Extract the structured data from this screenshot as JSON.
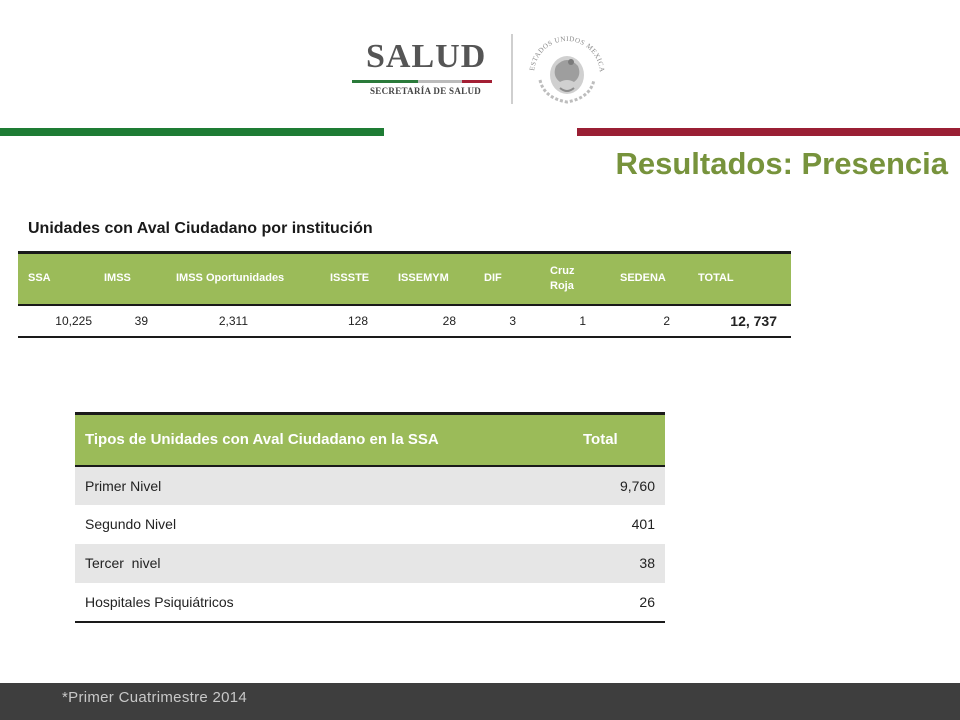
{
  "header": {
    "logo_word": "SALUD",
    "logo_subtitle": "SECRETARÍA DE SALUD",
    "seal_text": "ESTADOS UNIDOS MEXICANOS",
    "colors": {
      "green": "#1e7c34",
      "red": "#9a1f34",
      "title_green": "#77933c",
      "table_header": "#9bbb59"
    }
  },
  "title": "Resultados: Presencia",
  "section_heading": "Unidades con Aval Ciudadano por institución",
  "institution_table": {
    "headers": [
      "SSA",
      "IMSS",
      "IMSS Oportunidades",
      "ISSSTE",
      "ISSEMYM",
      "DIF",
      "Cruz Roja",
      "SEDENA",
      "TOTAL"
    ],
    "values": [
      "10,225",
      "39",
      "2,311",
      "128",
      "28",
      "3",
      "1",
      "2",
      "12, 737"
    ]
  },
  "ssa_table": {
    "header_label": "Tipos de Unidades con Aval Ciudadano en la SSA",
    "header_total": "Total",
    "rows": [
      {
        "label": "Primer Nivel",
        "value": "9,760"
      },
      {
        "label": "Segundo Nivel",
        "value": "401"
      },
      {
        "label": "Tercer  nivel",
        "value": "38"
      },
      {
        "label": "Hospitales Psiquiátricos",
        "value": "26"
      }
    ]
  },
  "footer": {
    "note": "*Primer Cuatrimestre 2014"
  }
}
